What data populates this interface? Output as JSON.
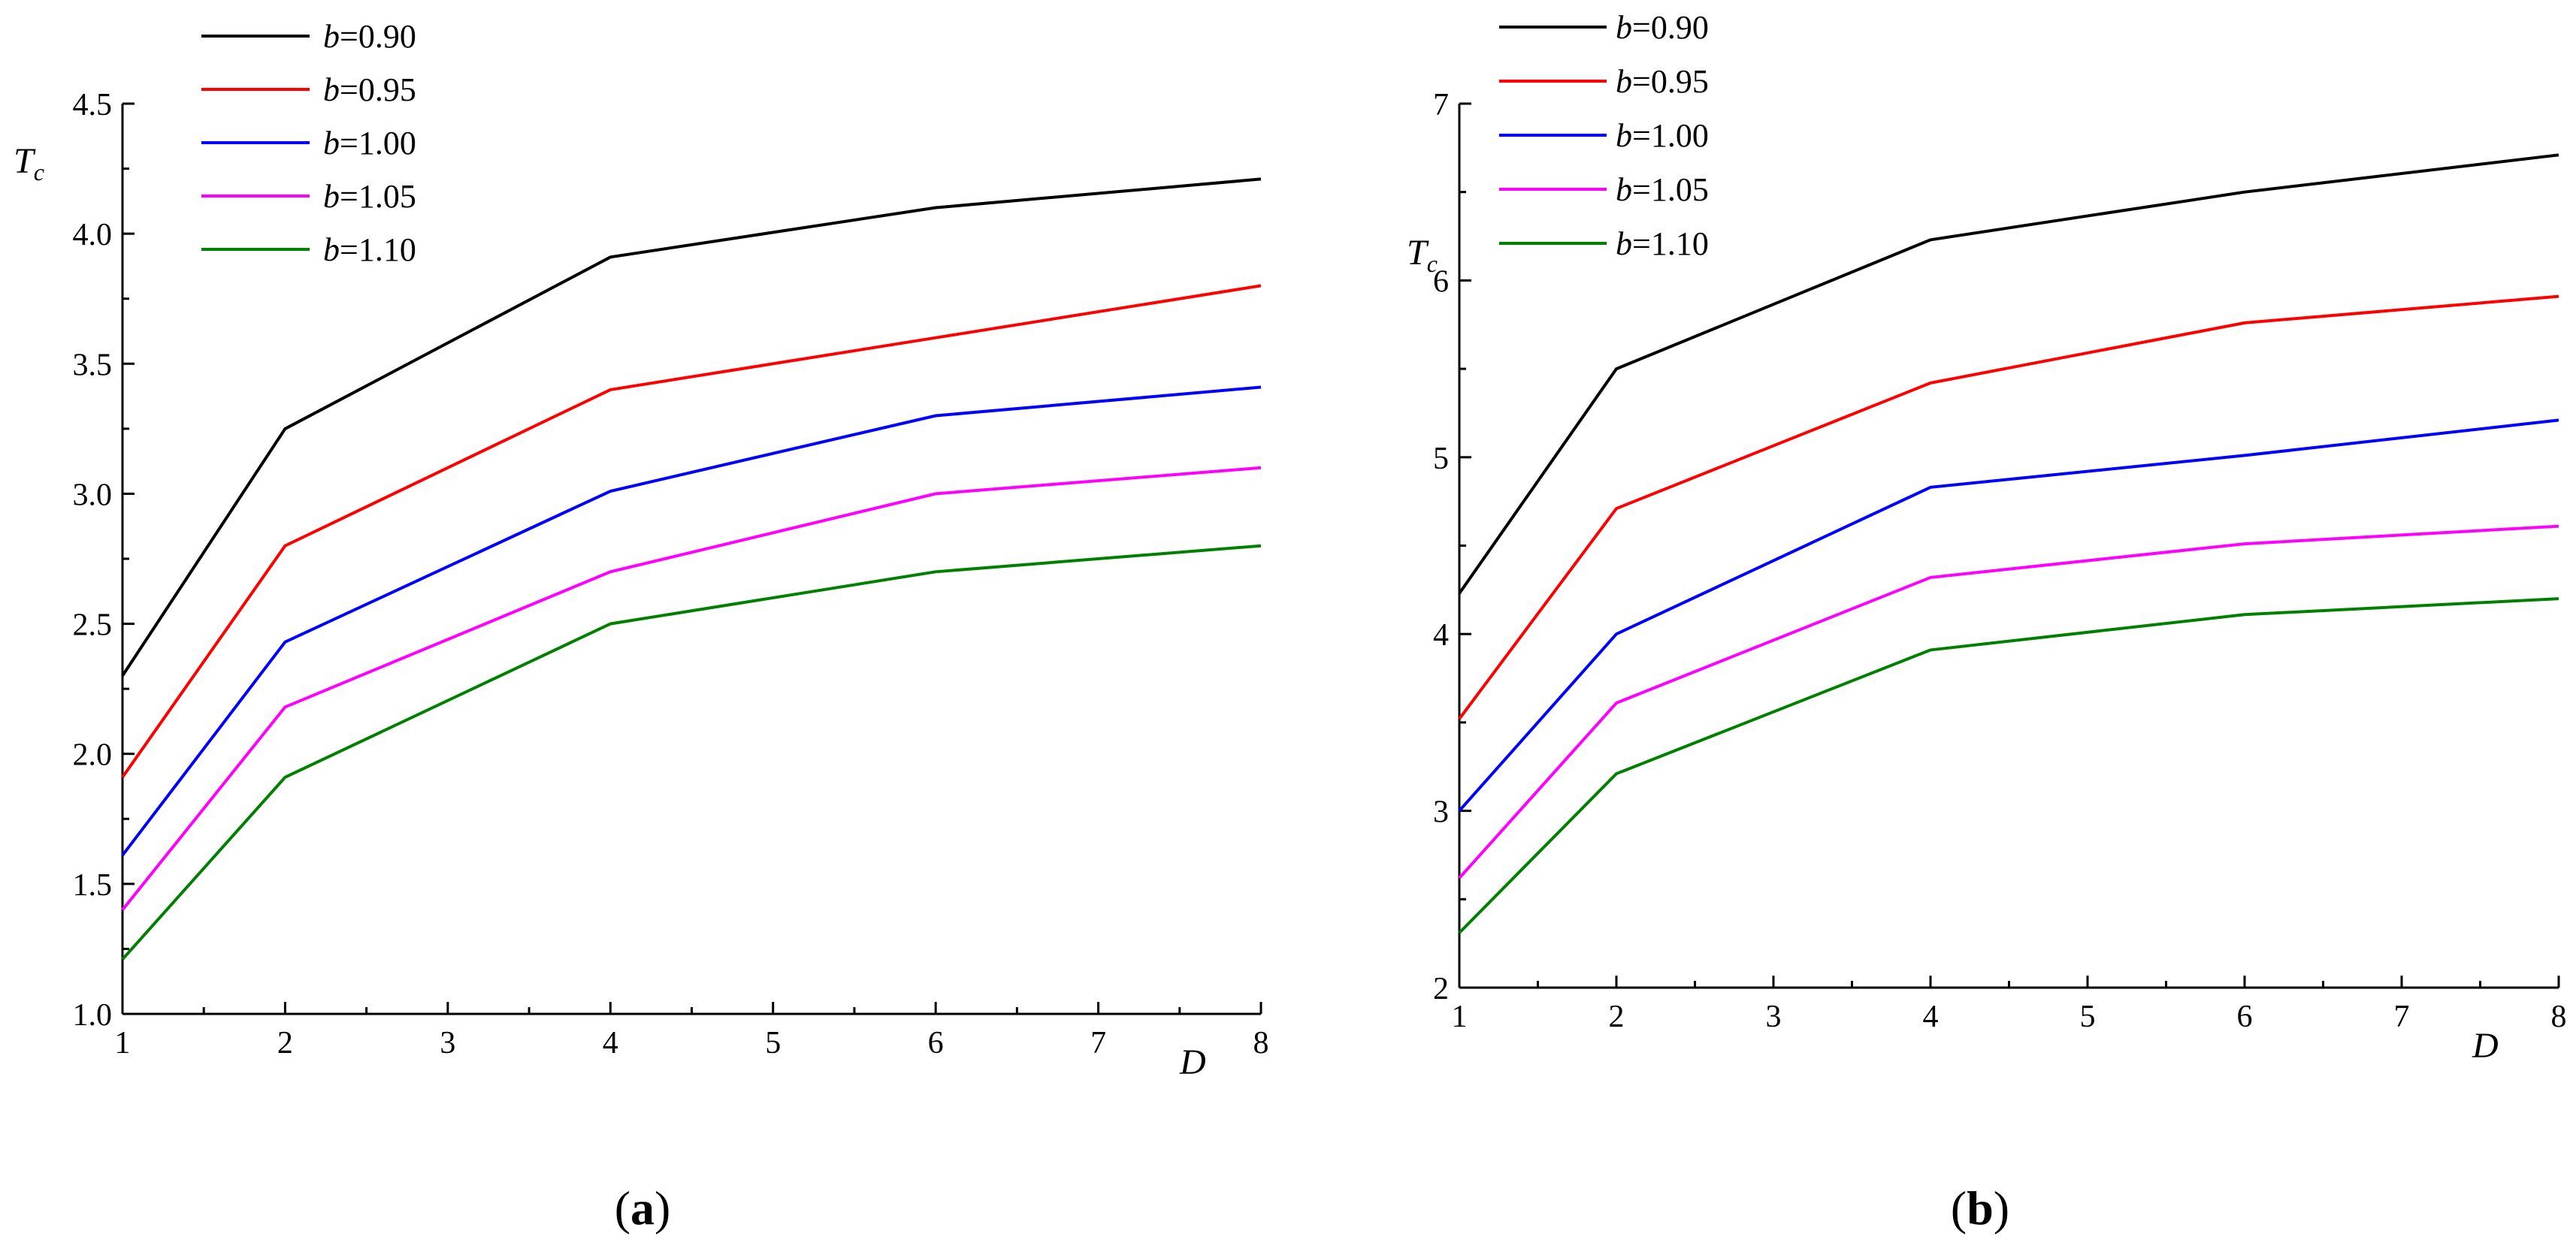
{
  "chart_data": [
    {
      "type": "line",
      "panel_label": "(a)",
      "panel_letter": "a",
      "xlabel": "D",
      "ylabel": "T",
      "ylabel_sub": "c",
      "xlim": [
        1,
        8
      ],
      "ylim": [
        1.0,
        4.5
      ],
      "x_ticks": [
        1,
        2,
        3,
        4,
        5,
        6,
        7,
        8
      ],
      "x_tick_labels": [
        "1",
        "2",
        "3",
        "4",
        "5",
        "6",
        "7",
        "8"
      ],
      "y_ticks": [
        1.0,
        1.5,
        2.0,
        2.5,
        3.0,
        3.5,
        4.0,
        4.5
      ],
      "y_tick_labels": [
        "1.0",
        "1.5",
        "2.0",
        "2.5",
        "3.0",
        "3.5",
        "4.0",
        "4.5"
      ],
      "x": [
        1,
        2,
        4,
        6,
        8
      ],
      "series": [
        {
          "name": "b=0.90",
          "param": "b",
          "value_text": "=0.90",
          "color": "#000000",
          "values": [
            2.3,
            3.25,
            3.91,
            4.1,
            4.21
          ]
        },
        {
          "name": "b=0.95",
          "param": "b",
          "value_text": "=0.95",
          "color": "#ff0000",
          "values": [
            1.91,
            2.8,
            3.4,
            3.6,
            3.8
          ]
        },
        {
          "name": "b=1.00",
          "param": "b",
          "value_text": "=1.00",
          "color": "#0000ff",
          "values": [
            1.61,
            2.43,
            3.01,
            3.3,
            3.41
          ]
        },
        {
          "name": "b=1.05",
          "param": "b",
          "value_text": "=1.05",
          "color": "#ff00ff",
          "values": [
            1.4,
            2.18,
            2.7,
            3.0,
            3.1
          ]
        },
        {
          "name": "b=1.10",
          "param": "b",
          "value_text": "=1.10",
          "color": "#008000",
          "values": [
            1.21,
            1.91,
            2.5,
            2.7,
            2.8
          ]
        }
      ]
    },
    {
      "type": "line",
      "panel_label": "(b)",
      "panel_letter": "b",
      "xlabel": "D",
      "ylabel": "T",
      "ylabel_sub": "c",
      "xlim": [
        1,
        8
      ],
      "ylim": [
        2,
        7
      ],
      "x_ticks": [
        1,
        2,
        3,
        4,
        5,
        6,
        7,
        8
      ],
      "x_tick_labels": [
        "1",
        "2",
        "3",
        "4",
        "5",
        "6",
        "7",
        "8"
      ],
      "y_ticks": [
        2,
        3,
        4,
        5,
        6,
        7
      ],
      "y_tick_labels": [
        "2",
        "3",
        "4",
        "5",
        "6",
        "7"
      ],
      "x": [
        1,
        2,
        4,
        6,
        8
      ],
      "series": [
        {
          "name": "b=0.90",
          "param": "b",
          "value_text": "=0.90",
          "color": "#000000",
          "values": [
            4.23,
            5.5,
            6.23,
            6.5,
            6.71
          ]
        },
        {
          "name": "b=0.95",
          "param": "b",
          "value_text": "=0.95",
          "color": "#ff0000",
          "values": [
            3.52,
            4.71,
            5.42,
            5.76,
            5.91
          ]
        },
        {
          "name": "b=1.00",
          "param": "b",
          "value_text": "=1.00",
          "color": "#0000ff",
          "values": [
            3.0,
            4.0,
            4.83,
            5.01,
            5.21
          ]
        },
        {
          "name": "b=1.05",
          "param": "b",
          "value_text": "=1.05",
          "color": "#ff00ff",
          "values": [
            2.62,
            3.61,
            4.32,
            4.51,
            4.61
          ]
        },
        {
          "name": "b=1.10",
          "param": "b",
          "value_text": "=1.10",
          "color": "#008000",
          "values": [
            2.31,
            3.21,
            3.91,
            4.11,
            4.2
          ]
        }
      ]
    }
  ]
}
